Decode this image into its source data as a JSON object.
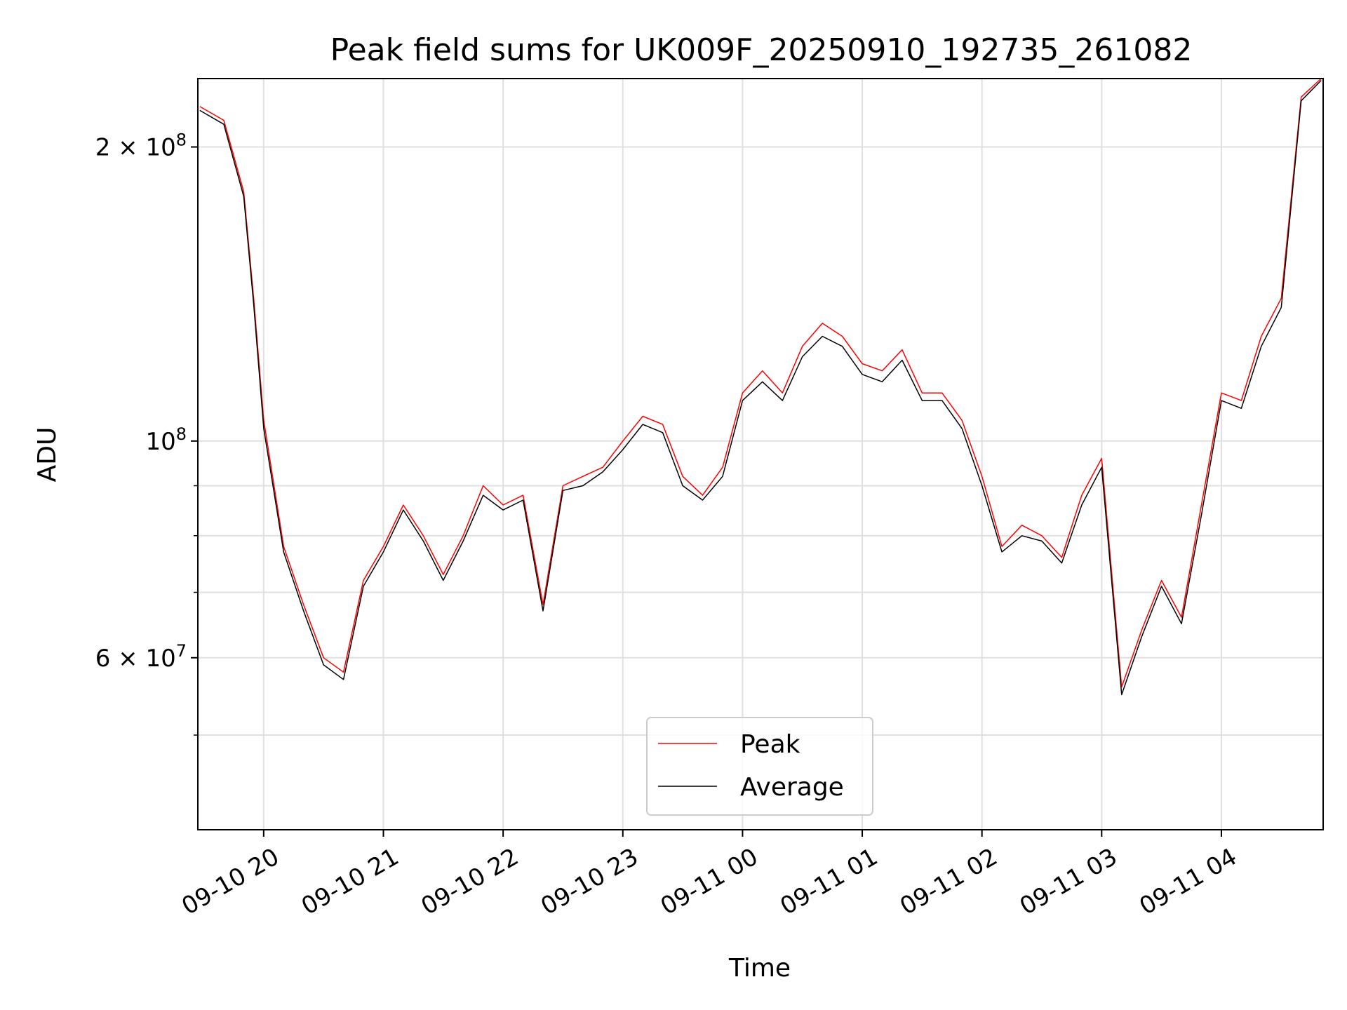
{
  "chart_data": {
    "type": "line",
    "title": "Peak field sums for UK009F_20250910_192735_261082",
    "xlabel": "Time",
    "ylabel": "ADU",
    "yscale": "log",
    "ylim": [
      40000000,
      235000000
    ],
    "xlim": [
      "2025-09-10 19:27",
      "2025-09-11 04:51"
    ],
    "grid": true,
    "legend": "lower center",
    "x_tick_labels": [
      "09-10 20",
      "09-10 21",
      "09-10 22",
      "09-10 23",
      "09-11 00",
      "09-11 01",
      "09-11 02",
      "09-11 03",
      "09-11 04"
    ],
    "y_tick_labels": [
      {
        "value": 200000000,
        "label": "2 × 10",
        "exp": "8"
      },
      {
        "value": 100000000,
        "label": "10",
        "exp": "8"
      },
      {
        "value": 60000000,
        "label": "6 × 10",
        "exp": "7"
      }
    ],
    "y_minor_grid": [
      50000000,
      70000000,
      80000000,
      90000000,
      200000000
    ],
    "series": [
      {
        "name": "Peak",
        "color": "#ff0000",
        "x": [
          "2025-09-10 19:28",
          "2025-09-10 19:40",
          "2025-09-10 19:50",
          "2025-09-10 19:55",
          "2025-09-10 20:00",
          "2025-09-10 20:10",
          "2025-09-10 20:20",
          "2025-09-10 20:30",
          "2025-09-10 20:40",
          "2025-09-10 20:50",
          "2025-09-10 21:00",
          "2025-09-10 21:10",
          "2025-09-10 21:20",
          "2025-09-10 21:30",
          "2025-09-10 21:40",
          "2025-09-10 21:50",
          "2025-09-10 22:00",
          "2025-09-10 22:10",
          "2025-09-10 22:20",
          "2025-09-10 22:30",
          "2025-09-10 22:40",
          "2025-09-10 22:50",
          "2025-09-10 23:00",
          "2025-09-10 23:10",
          "2025-09-10 23:20",
          "2025-09-10 23:30",
          "2025-09-10 23:40",
          "2025-09-10 23:50",
          "2025-09-11 00:00",
          "2025-09-11 00:10",
          "2025-09-11 00:20",
          "2025-09-11 00:30",
          "2025-09-11 00:40",
          "2025-09-11 00:50",
          "2025-09-11 01:00",
          "2025-09-11 01:10",
          "2025-09-11 01:20",
          "2025-09-11 01:30",
          "2025-09-11 01:40",
          "2025-09-11 01:50",
          "2025-09-11 02:00",
          "2025-09-11 02:10",
          "2025-09-11 02:20",
          "2025-09-11 02:30",
          "2025-09-11 02:40",
          "2025-09-11 02:50",
          "2025-09-11 03:00",
          "2025-09-11 03:10",
          "2025-09-11 03:20",
          "2025-09-11 03:30",
          "2025-09-11 03:40",
          "2025-09-11 03:50",
          "2025-09-11 04:00",
          "2025-09-11 04:10",
          "2025-09-11 04:20",
          "2025-09-11 04:30",
          "2025-09-11 04:40",
          "2025-09-11 04:50"
        ],
        "values": [
          220000000,
          213000000,
          180000000,
          140000000,
          105000000,
          78000000,
          68000000,
          60000000,
          58000000,
          72000000,
          78000000,
          86000000,
          80000000,
          73000000,
          80000000,
          90000000,
          86000000,
          88000000,
          68000000,
          90000000,
          92000000,
          94000000,
          100000000,
          106000000,
          104000000,
          92000000,
          88000000,
          94000000,
          112000000,
          118000000,
          112000000,
          125000000,
          132000000,
          128000000,
          120000000,
          118000000,
          124000000,
          112000000,
          112000000,
          105000000,
          92000000,
          78000000,
          82000000,
          80000000,
          76000000,
          88000000,
          96000000,
          56000000,
          64000000,
          72000000,
          66000000,
          86000000,
          112000000,
          110000000,
          128000000,
          140000000,
          225000000,
          235000000
        ]
      },
      {
        "name": "Average",
        "color": "#000000",
        "x": [
          "2025-09-10 19:28",
          "2025-09-10 19:40",
          "2025-09-10 19:50",
          "2025-09-10 19:55",
          "2025-09-10 20:00",
          "2025-09-10 20:10",
          "2025-09-10 20:20",
          "2025-09-10 20:30",
          "2025-09-10 20:40",
          "2025-09-10 20:50",
          "2025-09-10 21:00",
          "2025-09-10 21:10",
          "2025-09-10 21:20",
          "2025-09-10 21:30",
          "2025-09-10 21:40",
          "2025-09-10 21:50",
          "2025-09-10 22:00",
          "2025-09-10 22:10",
          "2025-09-10 22:20",
          "2025-09-10 22:30",
          "2025-09-10 22:40",
          "2025-09-10 22:50",
          "2025-09-10 23:00",
          "2025-09-10 23:10",
          "2025-09-10 23:20",
          "2025-09-10 23:30",
          "2025-09-10 23:40",
          "2025-09-10 23:50",
          "2025-09-11 00:00",
          "2025-09-11 00:10",
          "2025-09-11 00:20",
          "2025-09-11 00:30",
          "2025-09-11 00:40",
          "2025-09-11 00:50",
          "2025-09-11 01:00",
          "2025-09-11 01:10",
          "2025-09-11 01:20",
          "2025-09-11 01:30",
          "2025-09-11 01:40",
          "2025-09-11 01:50",
          "2025-09-11 02:00",
          "2025-09-11 02:10",
          "2025-09-11 02:20",
          "2025-09-11 02:30",
          "2025-09-11 02:40",
          "2025-09-11 02:50",
          "2025-09-11 03:00",
          "2025-09-11 03:10",
          "2025-09-11 03:20",
          "2025-09-11 03:30",
          "2025-09-11 03:40",
          "2025-09-11 03:50",
          "2025-09-11 04:00",
          "2025-09-11 04:10",
          "2025-09-11 04:20",
          "2025-09-11 04:30",
          "2025-09-11 04:40",
          "2025-09-11 04:50"
        ],
        "values": [
          218000000,
          211000000,
          178000000,
          138000000,
          103000000,
          77000000,
          67000000,
          59000000,
          57000000,
          71000000,
          77000000,
          85000000,
          79000000,
          72000000,
          79000000,
          88000000,
          85000000,
          87000000,
          67000000,
          89000000,
          90000000,
          93000000,
          98000000,
          104000000,
          102000000,
          90000000,
          87000000,
          92000000,
          110000000,
          115000000,
          110000000,
          122000000,
          128000000,
          125000000,
          117000000,
          115000000,
          121000000,
          110000000,
          110000000,
          103000000,
          90000000,
          77000000,
          80000000,
          79000000,
          75000000,
          86000000,
          94000000,
          55000000,
          63000000,
          71000000,
          65000000,
          84000000,
          110000000,
          108000000,
          125000000,
          137000000,
          223000000,
          234000000
        ]
      }
    ]
  }
}
